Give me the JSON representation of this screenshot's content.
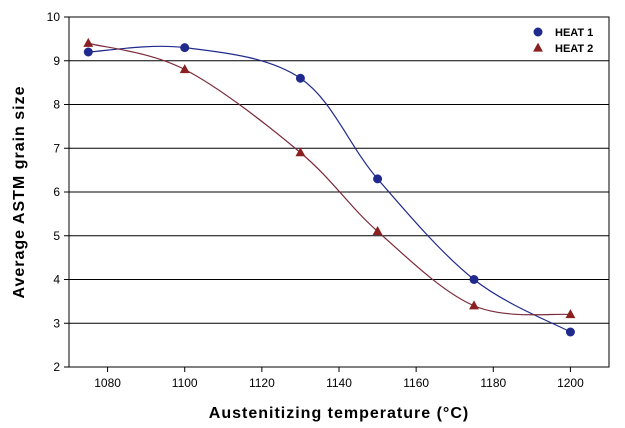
{
  "chart_data": {
    "type": "scatter",
    "title": "",
    "xlabel": "Austenitizing temperature (°C)",
    "ylabel": "Average ASTM grain size",
    "xlim": [
      1070,
      1210
    ],
    "ylim": [
      2,
      10
    ],
    "xticks": [
      1080,
      1100,
      1120,
      1140,
      1160,
      1180,
      1200
    ],
    "yticks": [
      2,
      3,
      4,
      5,
      6,
      7,
      8,
      9,
      10
    ],
    "grid": "horizontal",
    "legend_position": "top-right",
    "series": [
      {
        "name": "HEAT 1",
        "marker": "circle",
        "color": "#1f2a8c",
        "curve_color": "#1f2a8c",
        "x": [
          1075,
          1100,
          1130,
          1150,
          1175,
          1200
        ],
        "y": [
          9.2,
          9.3,
          8.6,
          6.3,
          4.0,
          2.8
        ]
      },
      {
        "name": "HEAT 2",
        "marker": "triangle",
        "color": "#8b2020",
        "curve_color": "#7a2a3a",
        "x": [
          1075,
          1100,
          1130,
          1150,
          1175,
          1200
        ],
        "y": [
          9.4,
          8.8,
          6.9,
          5.1,
          3.4,
          3.2
        ]
      }
    ]
  }
}
